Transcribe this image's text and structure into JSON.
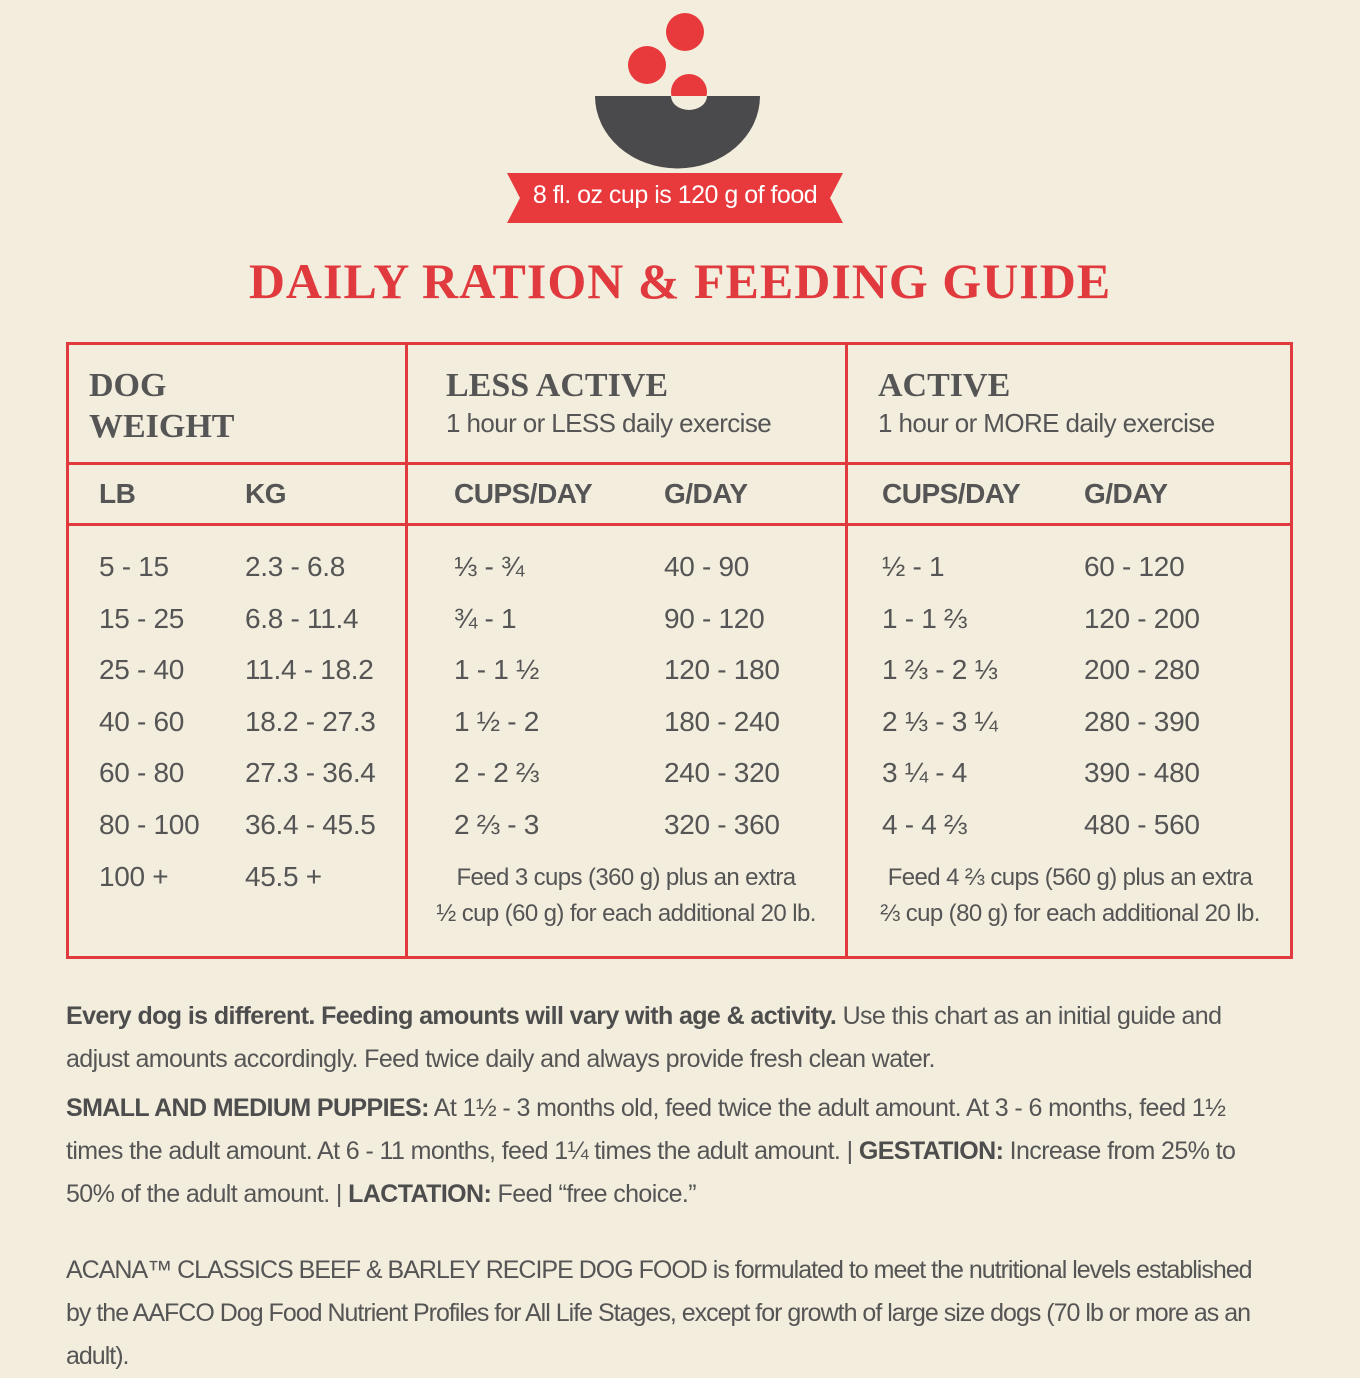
{
  "banner": "8 fl. oz cup is 120 g of food",
  "title": "DAILY RATION & FEEDING GUIDE",
  "table": {
    "groups": [
      {
        "title": "DOG WEIGHT"
      },
      {
        "title": "LESS ACTIVE",
        "subtitle": "1 hour or LESS daily exercise"
      },
      {
        "title": "ACTIVE",
        "subtitle": "1 hour or MORE daily exercise"
      }
    ],
    "columns": [
      "LB",
      "KG",
      "CUPS/DAY",
      "G/DAY",
      "CUPS/DAY",
      "G/DAY"
    ],
    "rows": [
      [
        "5 - 15",
        "2.3 - 6.8",
        "⅓ - ¾",
        "40 - 90",
        "½ - 1",
        "60 - 120"
      ],
      [
        "15 - 25",
        "6.8 - 11.4",
        "¾ - 1",
        "90 - 120",
        "1 - 1 ⅔",
        "120 - 200"
      ],
      [
        "25 - 40",
        "11.4 - 18.2",
        "1 - 1 ½",
        "120 - 180",
        "1 ⅔ - 2 ⅓",
        "200 - 280"
      ],
      [
        "40 - 60",
        "18.2 - 27.3",
        "1 ½ - 2",
        "180 - 240",
        "2 ⅓ - 3 ¼",
        "280 - 390"
      ],
      [
        "60 - 80",
        "27.3 - 36.4",
        "2 - 2 ⅔",
        "240 - 320",
        "3 ¼ - 4",
        "390 - 480"
      ],
      [
        "80 - 100",
        "36.4 - 45.5",
        "2 ⅔ - 3",
        "320 - 360",
        "4 - 4 ⅔",
        "480 - 560"
      ],
      [
        "100 +",
        "45.5 +"
      ]
    ],
    "notes": [
      [
        "Feed 3 cups (360 g) plus an extra",
        "½ cup (60 g) for each additional 20 lb."
      ],
      [
        "Feed 4 ⅔ cups (560 g) plus an extra",
        "⅔ cup (80 g) for each additional 20 lb."
      ]
    ]
  },
  "paragraphs": [
    [
      {
        "bold": true,
        "text": "Every dog is different. Feeding amounts will vary with age & activity."
      },
      {
        "bold": false,
        "text": " Use this chart as an initial guide and adjust amounts accordingly. Feed twice daily and always provide fresh clean water."
      }
    ],
    [
      {
        "bold": true,
        "text": "SMALL AND MEDIUM PUPPIES:"
      },
      {
        "bold": false,
        "text": " At 1½ - 3 months old, feed twice the adult amount. At 3 - 6 months, feed 1½ times the adult amount. At 6 - 11 months, feed 1¼ times the adult amount. | "
      },
      {
        "bold": true,
        "text": "GESTATION:"
      },
      {
        "bold": false,
        "text": " Increase from 25% to 50% of the adult amount. | "
      },
      {
        "bold": true,
        "text": "LACTATION:"
      },
      {
        "bold": false,
        "text": " Feed “free choice.”"
      }
    ]
  ],
  "footer": "ACANA™ CLASSICS BEEF & BARLEY RECIPE DOG FOOD is formulated to meet the nutritional levels established by the AAFCO Dog Food Nutrient Profiles for All Life Stages, except for growth of large size dogs (70 lb or more as an adult)."
}
